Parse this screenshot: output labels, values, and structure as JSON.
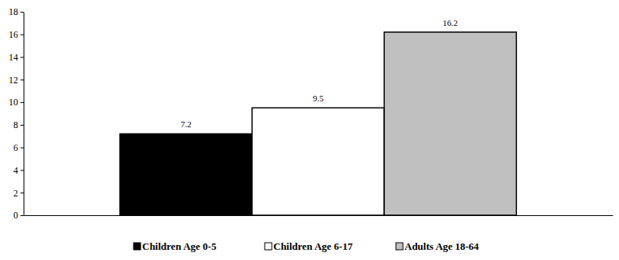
{
  "chart_data": {
    "type": "bar",
    "categories": [
      null
    ],
    "series": [
      {
        "name": "Children Age 0-5",
        "color": "#000000",
        "values": [
          7.2
        ]
      },
      {
        "name": "Children Age 6-17",
        "color": "#ffffff",
        "values": [
          9.5
        ]
      },
      {
        "name": "Adults Age 18-64",
        "color": "#c0c0c0",
        "values": [
          16.2
        ]
      }
    ],
    "ylim": [
      0,
      18
    ],
    "yticks": [
      0,
      2,
      4,
      6,
      8,
      10,
      12,
      14,
      16,
      18
    ],
    "data_labels": true,
    "legend": "bottom",
    "grid": false
  }
}
